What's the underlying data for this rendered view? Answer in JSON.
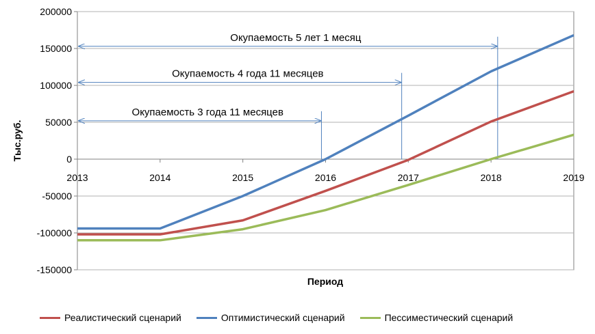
{
  "chart_data": {
    "type": "line",
    "x": [
      2013,
      2014,
      2015,
      2016,
      2017,
      2018,
      2019
    ],
    "x_tick_labels": [
      "2013",
      "2014",
      "2015",
      "2016",
      "2017",
      "2018",
      "2019"
    ],
    "y_tick_labels": [
      "200000",
      "150000",
      "100000",
      "50000",
      "0",
      "-50000",
      "-100000",
      "-150000"
    ],
    "xlabel": "Период",
    "ylabel": "Тыс.руб.",
    "xlim": [
      2013,
      2019
    ],
    "ylim": [
      -150000,
      200000
    ],
    "grid": "horizontal",
    "legend_position": "bottom",
    "series": [
      {
        "name": "Реалистический сценарий",
        "color": "#c0504d",
        "values": [
          -102000,
          -102000,
          -83000,
          -43000,
          -1000,
          51000,
          92000
        ]
      },
      {
        "name": "Оптимистический сценарий",
        "color": "#4f81bd",
        "values": [
          -94000,
          -94000,
          -50000,
          0,
          59000,
          119000,
          168000
        ]
      },
      {
        "name": "Пессиместический сценарий",
        "color": "#9bbb59",
        "values": [
          -110000,
          -110000,
          -95000,
          -69000,
          -35000,
          0,
          33000
        ]
      }
    ],
    "annotations": [
      {
        "text": "Окупаемость 5 лет  1 месяц",
        "x_end": 2018.08,
        "y": 153000,
        "text_y": 165000
      },
      {
        "text": "Окупаемость 4 года  11 месяцев",
        "x_end": 2016.92,
        "y": 104000,
        "text_y": 116000
      },
      {
        "text": "Окупаемость 3 года  11 месяцев",
        "x_end": 2015.95,
        "y": 52000,
        "text_y": 64000
      }
    ]
  }
}
